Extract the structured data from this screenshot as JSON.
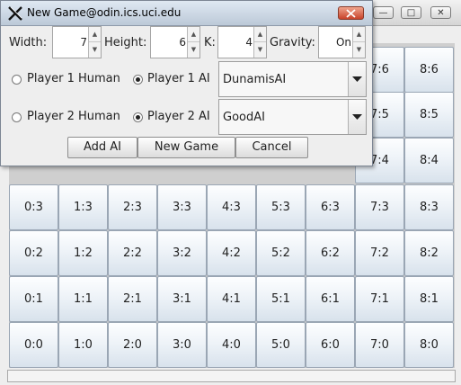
{
  "dialog": {
    "title": "New Game@odin.ics.uci.edu",
    "width_label": "Width:",
    "width_value": "7",
    "height_label": "Height:",
    "height_value": "6",
    "k_label": "K:",
    "k_value": "4",
    "gravity_label": "Gravity:",
    "gravity_value": "On",
    "player1_human": "Player 1 Human",
    "player1_ai": "Player 1 AI",
    "player1_ai_selected": "DunamisAI",
    "player2_human": "Player 2 Human",
    "player2_ai": "Player 2 AI",
    "player2_ai_selected": "GoodAI",
    "add_ai": "Add AI",
    "new_game": "New Game",
    "cancel": "Cancel"
  },
  "main_window": {
    "minimize_icon": "minimize-icon",
    "maximize_icon": "maximize-icon",
    "close_icon": "close-icon"
  },
  "board": {
    "visible_cells": [
      [
        "7:6",
        "8:6"
      ],
      [
        "7:5",
        "8:5"
      ],
      [
        "7:4",
        "8:4"
      ],
      [
        "0:3",
        "1:3",
        "2:3",
        "3:3",
        "4:3",
        "5:3",
        "6:3",
        "7:3",
        "8:3"
      ],
      [
        "0:2",
        "1:2",
        "2:2",
        "3:2",
        "4:2",
        "5:2",
        "6:2",
        "7:2",
        "8:2"
      ],
      [
        "0:1",
        "1:1",
        "2:1",
        "3:1",
        "4:1",
        "5:1",
        "6:1",
        "7:1",
        "8:1"
      ],
      [
        "0:0",
        "1:0",
        "2:0",
        "3:0",
        "4:0",
        "5:0",
        "6:0",
        "7:0",
        "8:0"
      ]
    ]
  },
  "colors": {
    "dialog_title_bar": "#c9d5e3",
    "close_button": "#d9593f",
    "cell_top": "#fdfeff",
    "cell_bottom": "#d8e2ec"
  }
}
